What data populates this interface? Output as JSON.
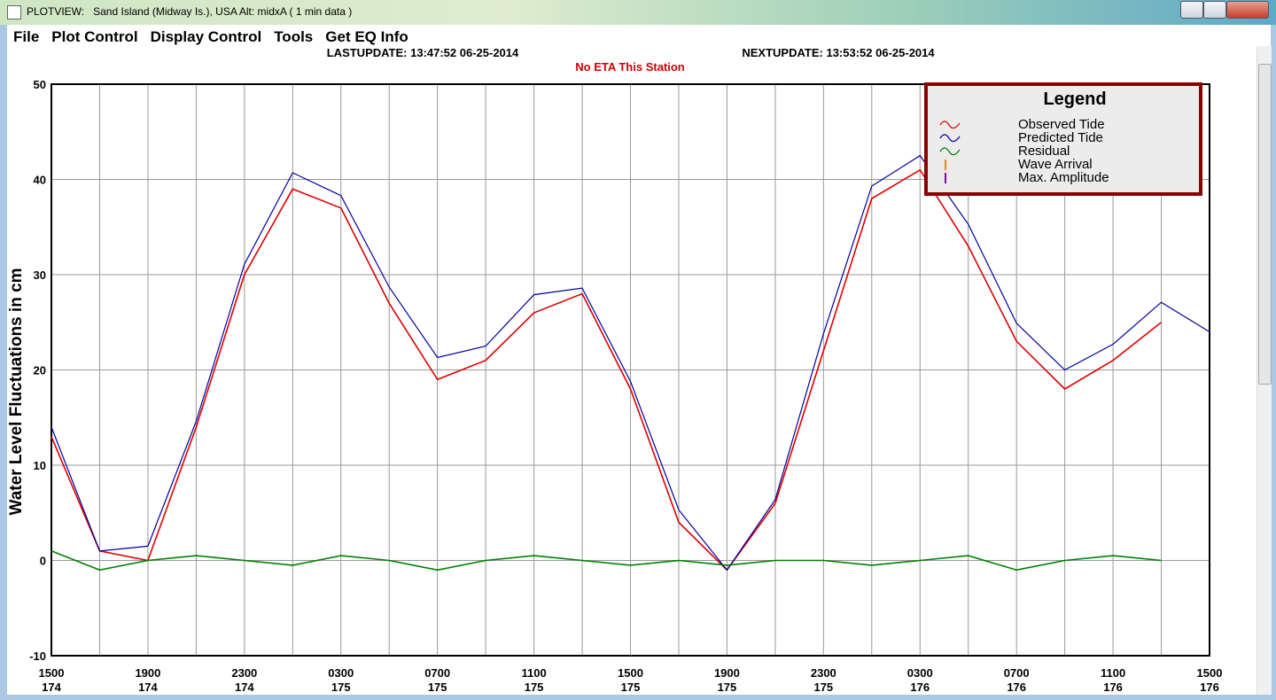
{
  "window": {
    "title": "PLOTVIEW:   Sand Island (Midway Is.), USA Alt: midxA ( 1 min data )"
  },
  "menu": [
    "File",
    "Plot Control",
    "Display Control",
    "Tools",
    "Get EQ Info"
  ],
  "header": {
    "last_update": "LASTUPDATE: 13:47:52 06-25-2014",
    "next_update": "NEXTUPDATE: 13:53:52 06-25-2014",
    "eta": "No ETA This Station"
  },
  "chart_data": {
    "type": "line",
    "y_label": "Water Level Fluctuations in cm",
    "categories": [
      "1500",
      null,
      "1900",
      null,
      "2300",
      null,
      "0300",
      null,
      "0700",
      null,
      "1100",
      null,
      "1500",
      null,
      "1900",
      null,
      "2300",
      null,
      "0300",
      null,
      "0700",
      null,
      "1100",
      null,
      "1500"
    ],
    "days": [
      "174",
      null,
      "174",
      null,
      "174",
      null,
      "175",
      null,
      "175",
      null,
      "175",
      null,
      "175",
      null,
      "175",
      null,
      "175",
      null,
      "176",
      null,
      "176",
      null,
      "176",
      null,
      "176"
    ],
    "series": [
      {
        "name": "Observed Tide",
        "color": "#e00000",
        "values": [
          13,
          1,
          0,
          14,
          30,
          39,
          37,
          27,
          19,
          21,
          26,
          28,
          18,
          4,
          -1,
          6,
          22,
          38,
          41,
          33,
          23,
          18,
          21,
          25,
          null
        ]
      },
      {
        "name": "Predicted Tide",
        "color": "#0000a0",
        "values": [
          14,
          1,
          1.5,
          14.6,
          31.1,
          40.7,
          38.3,
          28.7,
          21.3,
          22.5,
          27.9,
          28.6,
          18.8,
          5.3,
          -1,
          6.4,
          23.8,
          39.3,
          42.5,
          35.3,
          24.9,
          20,
          22.7,
          27.1,
          24
        ]
      },
      {
        "name": "Residual",
        "color": "#008000",
        "values": [
          1,
          -1,
          0,
          0.5,
          0,
          -0.5,
          0.5,
          0,
          -1,
          0,
          0.5,
          0,
          -0.5,
          0,
          -0.5,
          0,
          0,
          -0.5,
          0,
          0.5,
          -1,
          0,
          0.5,
          0,
          null
        ]
      }
    ],
    "legend_title": "Legend",
    "legend_extra": [
      {
        "name": "Wave Arrival",
        "color": "#ff8000"
      },
      {
        "name": "Max. Amplitude",
        "color": "#9000b0"
      }
    ],
    "ylim": [
      -10,
      50
    ],
    "yticks": [
      -10,
      0,
      10,
      20,
      30,
      40,
      50
    ],
    "grid": true
  }
}
